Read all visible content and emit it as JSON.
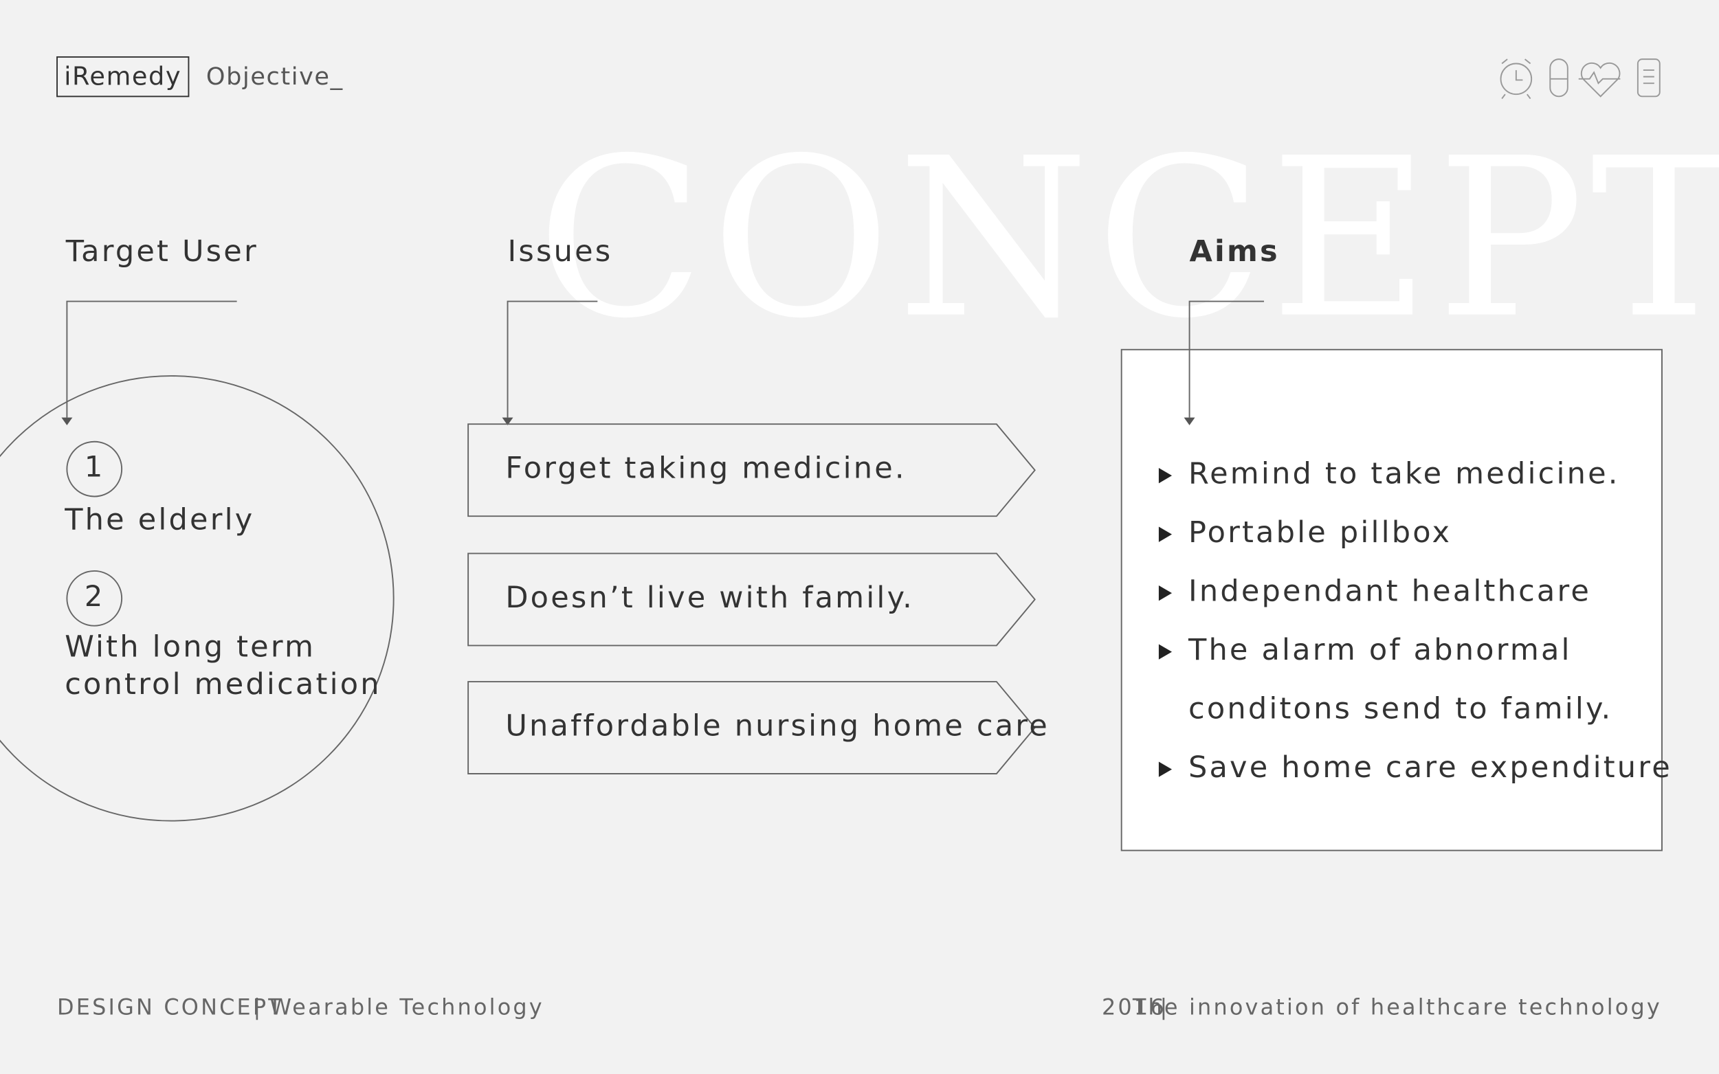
{
  "header": {
    "brand": "iRemedy",
    "section": "Objective_"
  },
  "watermark": "CONCEPT",
  "target_user": {
    "title": "Target User",
    "items": [
      {
        "number": 1,
        "lines": [
          "The elderly"
        ]
      },
      {
        "number": 2,
        "lines": [
          "With long term",
          "control medication"
        ]
      }
    ]
  },
  "issues": {
    "title": "Issues",
    "items": [
      "Forget taking medicine.",
      "Doesn’t live with family.",
      "Unaffordable nursing home care"
    ]
  },
  "aims": {
    "title": "Aims",
    "items": [
      [
        "Remind to take medicine."
      ],
      [
        "Portable pillbox"
      ],
      [
        "Independant healthcare"
      ],
      [
        "The alarm of abnormal",
        "conditons send to family."
      ],
      [
        "Save home care expenditure"
      ]
    ]
  },
  "footer": {
    "left": {
      "label": "DESIGN CONCEPT",
      "text": "Wearable Technology"
    },
    "right": {
      "year": "2016",
      "text": "The innovation of healthcare technology"
    }
  }
}
